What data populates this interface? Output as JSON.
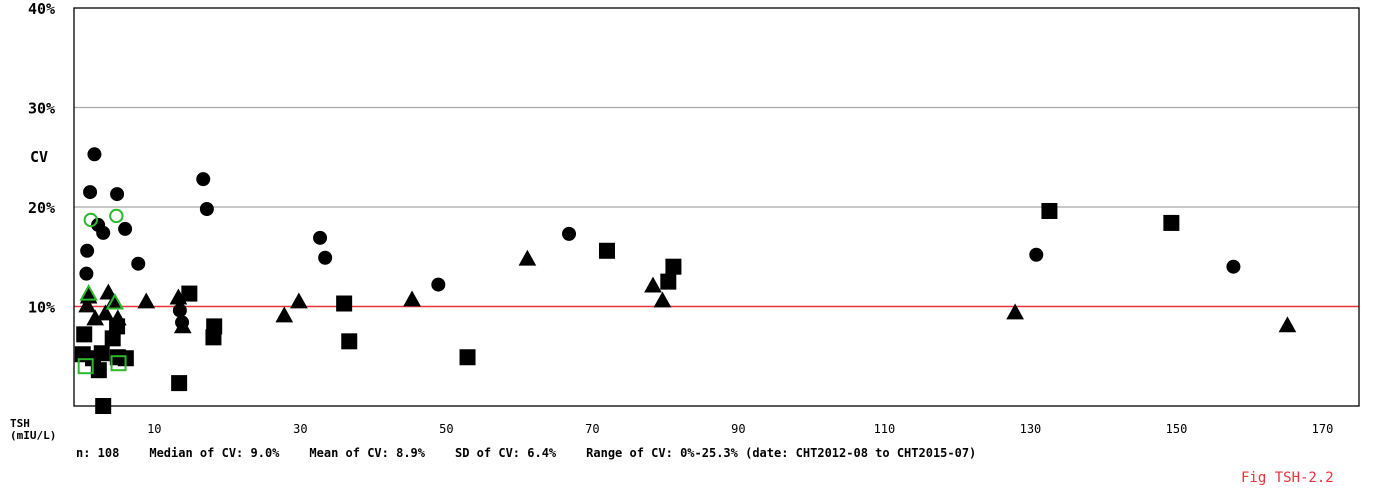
{
  "chart_data": {
    "type": "scatter",
    "ylabel": "CV",
    "xlabel_line1": "TSH",
    "xlabel_line2": "(mIU/L)",
    "xlim": [
      -1,
      175
    ],
    "ylim": [
      0,
      40
    ],
    "yticks": [
      {
        "value": 10,
        "label": "10%"
      },
      {
        "value": 20,
        "label": "20%"
      },
      {
        "value": 30,
        "label": "30%"
      },
      {
        "value": 40,
        "label": "40%"
      }
    ],
    "xticks": [
      {
        "value": 10,
        "label": "10"
      },
      {
        "value": 30,
        "label": "30"
      },
      {
        "value": 50,
        "label": "50"
      },
      {
        "value": 70,
        "label": "70"
      },
      {
        "value": 90,
        "label": "90"
      },
      {
        "value": 110,
        "label": "110"
      },
      {
        "value": 130,
        "label": "130"
      },
      {
        "value": 150,
        "label": "150"
      },
      {
        "value": 170,
        "label": "170"
      }
    ],
    "reference_line": {
      "value": 10,
      "color": "#e8333a"
    },
    "grid_color": "#a8a8a8",
    "series": [
      {
        "marker": "circle",
        "color": "#000000",
        "filled": true,
        "points": [
          [
            1.8,
            25.3
          ],
          [
            1.2,
            21.5
          ],
          [
            4.9,
            21.3
          ],
          [
            16.7,
            22.8
          ],
          [
            17.2,
            19.8
          ],
          [
            2.3,
            18.2
          ],
          [
            3.0,
            17.4
          ],
          [
            6.0,
            17.8
          ],
          [
            0.8,
            15.6
          ],
          [
            0.7,
            13.3
          ],
          [
            7.8,
            14.3
          ],
          [
            32.7,
            16.9
          ],
          [
            33.4,
            14.9
          ],
          [
            48.9,
            12.2
          ],
          [
            66.8,
            17.3
          ],
          [
            130.8,
            15.2
          ],
          [
            157.8,
            14.0
          ],
          [
            13.5,
            9.6
          ],
          [
            13.8,
            8.4
          ]
        ]
      },
      {
        "marker": "triangle",
        "color": "#000000",
        "filled": true,
        "points": [
          [
            1.0,
            11.0
          ],
          [
            3.7,
            11.4
          ],
          [
            4.4,
            10.4
          ],
          [
            0.8,
            10.1
          ],
          [
            3.3,
            9.3
          ],
          [
            1.9,
            8.8
          ],
          [
            5.0,
            8.8
          ],
          [
            8.9,
            10.5
          ],
          [
            13.3,
            10.9
          ],
          [
            13.9,
            8.0
          ],
          [
            27.8,
            9.1
          ],
          [
            29.8,
            10.5
          ],
          [
            45.3,
            10.7
          ],
          [
            61.1,
            14.8
          ],
          [
            78.3,
            12.1
          ],
          [
            79.6,
            10.6
          ],
          [
            127.9,
            9.4
          ],
          [
            165.2,
            8.1
          ]
        ]
      },
      {
        "marker": "square",
        "color": "#000000",
        "filled": true,
        "points": [
          [
            0.4,
            7.2
          ],
          [
            0.2,
            5.2
          ],
          [
            1.6,
            4.8
          ],
          [
            2.8,
            5.3
          ],
          [
            2.4,
            3.6
          ],
          [
            4.3,
            6.8
          ],
          [
            5.0,
            4.9
          ],
          [
            6.1,
            4.8
          ],
          [
            3.0,
            0.0
          ],
          [
            4.9,
            8.0
          ],
          [
            13.4,
            2.3
          ],
          [
            14.8,
            11.3
          ],
          [
            18.2,
            8.0
          ],
          [
            18.1,
            6.9
          ],
          [
            36.0,
            10.3
          ],
          [
            36.7,
            6.5
          ],
          [
            52.9,
            4.9
          ],
          [
            72.0,
            15.6
          ],
          [
            80.4,
            12.5
          ],
          [
            81.1,
            14.0
          ],
          [
            132.6,
            19.6
          ],
          [
            149.3,
            18.4
          ]
        ]
      },
      {
        "marker": "circle",
        "color": "#2db82d",
        "filled": false,
        "points": [
          [
            1.3,
            18.7
          ],
          [
            4.8,
            19.1
          ]
        ]
      },
      {
        "marker": "triangle",
        "color": "#2db82d",
        "filled": false,
        "points": [
          [
            1.0,
            11.3
          ],
          [
            4.6,
            10.4
          ]
        ]
      },
      {
        "marker": "square",
        "color": "#2db82d",
        "filled": false,
        "points": [
          [
            0.6,
            4.0
          ],
          [
            5.1,
            4.3
          ]
        ]
      }
    ]
  },
  "stats": {
    "n": "n: 108",
    "median": "Median of CV: 9.0%",
    "mean": "Mean of CV: 8.9%",
    "sd": "SD of CV: 6.4%",
    "range": "Range of CV: 0%-25.3% (date: CHT2012-08 to CHT2015-07)"
  },
  "figure_label": "Fig TSH-2.2"
}
